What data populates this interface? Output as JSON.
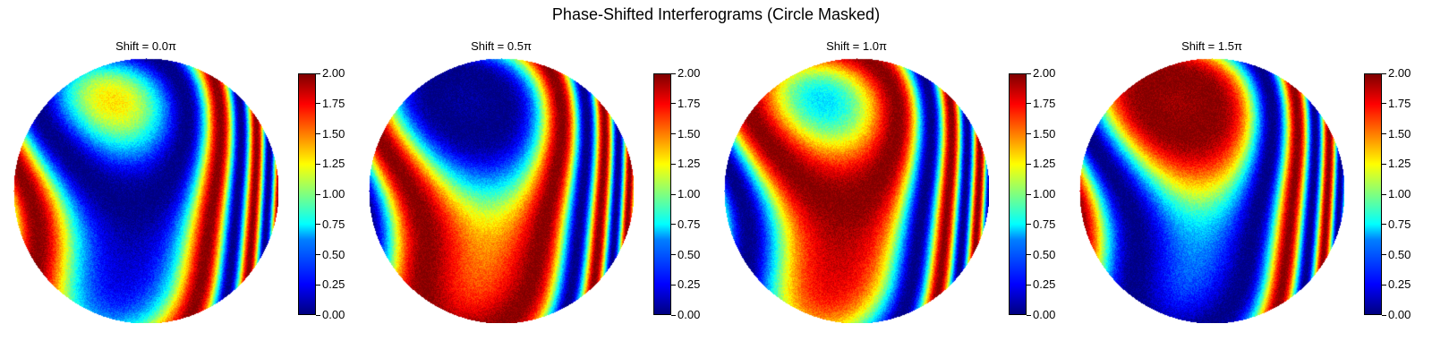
{
  "figure": {
    "title": "Phase-Shifted Interferograms (Circle Masked)"
  },
  "chart_data": {
    "type": "heatmap",
    "title": "Phase-Shifted Interferograms (Circle Masked)",
    "colormap": "jet",
    "mask": "circle",
    "panels": [
      {
        "title": "Shift = 0.0π",
        "shift_pi": 0.0
      },
      {
        "title": "Shift = 0.5π",
        "shift_pi": 0.5
      },
      {
        "title": "Shift = 1.0π",
        "shift_pi": 1.0
      },
      {
        "title": "Shift = 1.5π",
        "shift_pi": 1.5
      }
    ],
    "colorbar": {
      "vmin": 0.0,
      "vmax": 2.0,
      "ticks": [
        "0.00",
        "0.25",
        "0.50",
        "0.75",
        "1.00",
        "1.25",
        "1.50",
        "1.75",
        "2.00"
      ]
    }
  }
}
